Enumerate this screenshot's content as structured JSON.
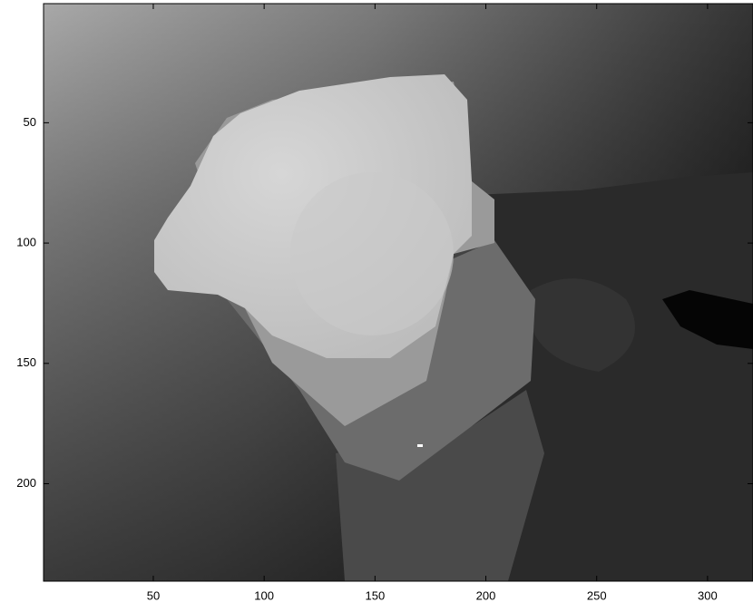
{
  "chart_data": {
    "type": "image",
    "colormap": "gray",
    "xlim": [
      0.5,
      320.5
    ],
    "ylim": [
      0.5,
      240.5
    ],
    "xticks": [
      50,
      100,
      150,
      200,
      250,
      300
    ],
    "yticks": [
      50,
      100,
      150,
      200
    ],
    "y_reversed": true
  }
}
